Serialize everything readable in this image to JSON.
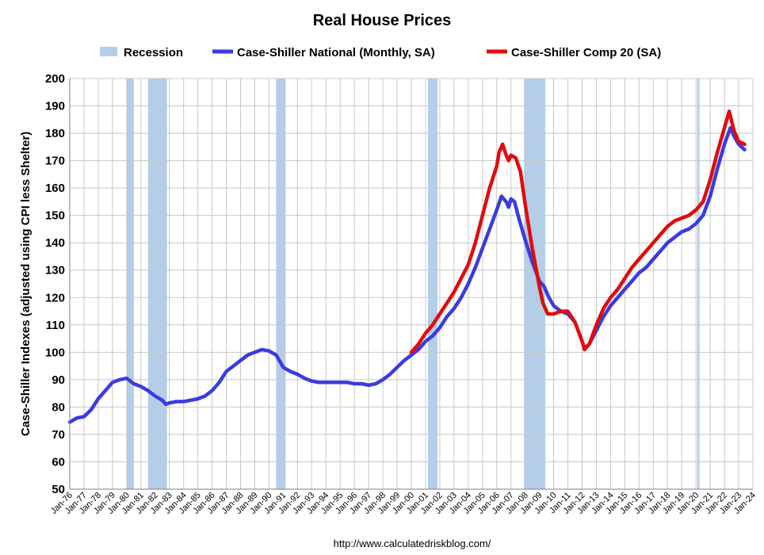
{
  "chart_data": {
    "type": "line",
    "title": "Real House Prices",
    "ylabel": "Case-Shiller Indexes (adjusted using CPI less Shelter)",
    "xlabel": "",
    "source": "http://www.calculatedriskblog.com/",
    "ylim": [
      50,
      200
    ],
    "yticks": [
      50,
      60,
      70,
      80,
      90,
      100,
      110,
      120,
      130,
      140,
      150,
      160,
      170,
      180,
      190,
      200
    ],
    "xlim": [
      "1976-01",
      "2024-01"
    ],
    "xticks": [
      "Jan-76",
      "Jan-77",
      "Jan-78",
      "Jan-79",
      "Jan-80",
      "Jan-81",
      "Jan-82",
      "Jan-83",
      "Jan-84",
      "Jan-85",
      "Jan-86",
      "Jan-87",
      "Jan-88",
      "Jan-89",
      "Jan-90",
      "Jan-91",
      "Jan-92",
      "Jan-93",
      "Jan-94",
      "Jan-95",
      "Jan-96",
      "Jan-97",
      "Jan-98",
      "Jan-99",
      "Jan-00",
      "Jan-01",
      "Jan-02",
      "Jan-03",
      "Jan-04",
      "Jan-05",
      "Jan-06",
      "Jan-07",
      "Jan-08",
      "Jan-09",
      "Jan-10",
      "Jan-11",
      "Jan-12",
      "Jan-13",
      "Jan-14",
      "Jan-15",
      "Jan-16",
      "Jan-17",
      "Jan-18",
      "Jan-19",
      "Jan-20",
      "Jan-21",
      "Jan-22",
      "Jan-23",
      "Jan-24"
    ],
    "grid": true,
    "legend_position": "top",
    "recession_label": "Recession",
    "recession_color": "#b4cde9",
    "recessions": [
      {
        "start": "1980-01",
        "end": "1980-07"
      },
      {
        "start": "1981-07",
        "end": "1982-11"
      },
      {
        "start": "1990-07",
        "end": "1991-03"
      },
      {
        "start": "2001-03",
        "end": "2001-11"
      },
      {
        "start": "2007-12",
        "end": "2009-06"
      },
      {
        "start": "2020-02",
        "end": "2020-04"
      }
    ],
    "series": [
      {
        "name": "Case-Shiller National (Monthly, SA)",
        "color": "#3b3be0",
        "points": [
          [
            "1976-01",
            74.5
          ],
          [
            "1976-07",
            76
          ],
          [
            "1977-01",
            76.5
          ],
          [
            "1977-07",
            79
          ],
          [
            "1978-01",
            83
          ],
          [
            "1978-07",
            86
          ],
          [
            "1979-01",
            89
          ],
          [
            "1979-07",
            90
          ],
          [
            "1980-01",
            90.5
          ],
          [
            "1980-07",
            88.5
          ],
          [
            "1981-01",
            87.5
          ],
          [
            "1981-07",
            86
          ],
          [
            "1982-01",
            84
          ],
          [
            "1982-07",
            82.5
          ],
          [
            "1982-10",
            81
          ],
          [
            "1983-01",
            81.5
          ],
          [
            "1983-07",
            82
          ],
          [
            "1984-01",
            82
          ],
          [
            "1984-07",
            82.5
          ],
          [
            "1985-01",
            83
          ],
          [
            "1985-07",
            84
          ],
          [
            "1986-01",
            86
          ],
          [
            "1986-07",
            89
          ],
          [
            "1987-01",
            93
          ],
          [
            "1987-07",
            95
          ],
          [
            "1988-01",
            97
          ],
          [
            "1988-07",
            99
          ],
          [
            "1989-01",
            100
          ],
          [
            "1989-07",
            101
          ],
          [
            "1990-01",
            100.5
          ],
          [
            "1990-07",
            99
          ],
          [
            "1991-01",
            94.5
          ],
          [
            "1991-07",
            93
          ],
          [
            "1992-01",
            92
          ],
          [
            "1992-07",
            90.5
          ],
          [
            "1993-01",
            89.5
          ],
          [
            "1993-07",
            89
          ],
          [
            "1994-01",
            89
          ],
          [
            "1994-07",
            89
          ],
          [
            "1995-01",
            89
          ],
          [
            "1995-07",
            89
          ],
          [
            "1996-01",
            88.5
          ],
          [
            "1996-07",
            88.5
          ],
          [
            "1997-01",
            88
          ],
          [
            "1997-07",
            88.5
          ],
          [
            "1998-01",
            90
          ],
          [
            "1998-07",
            92
          ],
          [
            "1999-01",
            94.5
          ],
          [
            "1999-07",
            97
          ],
          [
            "2000-01",
            99
          ],
          [
            "2000-07",
            101
          ],
          [
            "2001-01",
            104
          ],
          [
            "2001-07",
            106
          ],
          [
            "2002-01",
            109
          ],
          [
            "2002-07",
            113
          ],
          [
            "2003-01",
            116
          ],
          [
            "2003-07",
            120
          ],
          [
            "2004-01",
            125
          ],
          [
            "2004-07",
            131
          ],
          [
            "2005-01",
            138
          ],
          [
            "2005-07",
            145
          ],
          [
            "2006-01",
            152
          ],
          [
            "2006-05",
            157
          ],
          [
            "2006-09",
            155
          ],
          [
            "2006-11",
            153
          ],
          [
            "2007-01",
            156
          ],
          [
            "2007-04",
            155
          ],
          [
            "2007-07",
            150
          ],
          [
            "2008-01",
            141
          ],
          [
            "2008-07",
            133
          ],
          [
            "2009-01",
            126
          ],
          [
            "2009-05",
            124
          ],
          [
            "2009-09",
            120
          ],
          [
            "2010-01",
            117
          ],
          [
            "2010-07",
            115
          ],
          [
            "2011-01",
            114
          ],
          [
            "2011-07",
            111
          ],
          [
            "2012-01",
            104
          ],
          [
            "2012-03",
            101.5
          ],
          [
            "2012-07",
            103
          ],
          [
            "2013-01",
            108
          ],
          [
            "2013-07",
            113
          ],
          [
            "2014-01",
            117
          ],
          [
            "2014-07",
            120
          ],
          [
            "2015-01",
            123
          ],
          [
            "2015-07",
            126
          ],
          [
            "2016-01",
            129
          ],
          [
            "2016-07",
            131
          ],
          [
            "2017-01",
            134
          ],
          [
            "2017-07",
            137
          ],
          [
            "2018-01",
            140
          ],
          [
            "2018-07",
            142
          ],
          [
            "2019-01",
            144
          ],
          [
            "2019-07",
            145
          ],
          [
            "2020-01",
            147
          ],
          [
            "2020-07",
            150
          ],
          [
            "2021-01",
            157
          ],
          [
            "2021-07",
            167
          ],
          [
            "2022-01",
            176
          ],
          [
            "2022-06",
            182
          ],
          [
            "2022-09",
            179
          ],
          [
            "2023-01",
            176
          ],
          [
            "2023-06",
            174
          ]
        ]
      },
      {
        "name": "Case-Shiller Comp 20  (SA)",
        "color": "#e00c0c",
        "points": [
          [
            "2000-01",
            100
          ],
          [
            "2000-07",
            103
          ],
          [
            "2001-01",
            107
          ],
          [
            "2001-07",
            110
          ],
          [
            "2002-01",
            114
          ],
          [
            "2002-07",
            118
          ],
          [
            "2003-01",
            122
          ],
          [
            "2003-07",
            127
          ],
          [
            "2004-01",
            132
          ],
          [
            "2004-07",
            140
          ],
          [
            "2005-01",
            150
          ],
          [
            "2005-07",
            160
          ],
          [
            "2006-01",
            168
          ],
          [
            "2006-03",
            173
          ],
          [
            "2006-06",
            176
          ],
          [
            "2006-09",
            172
          ],
          [
            "2006-11",
            170
          ],
          [
            "2007-01",
            172
          ],
          [
            "2007-05",
            171
          ],
          [
            "2007-09",
            166
          ],
          [
            "2008-01",
            154
          ],
          [
            "2008-07",
            138
          ],
          [
            "2009-01",
            124
          ],
          [
            "2009-04",
            118
          ],
          [
            "2009-08",
            114
          ],
          [
            "2010-01",
            114
          ],
          [
            "2010-07",
            115
          ],
          [
            "2011-01",
            115
          ],
          [
            "2011-07",
            111
          ],
          [
            "2012-01",
            104
          ],
          [
            "2012-03",
            101
          ],
          [
            "2012-07",
            103
          ],
          [
            "2013-01",
            110
          ],
          [
            "2013-07",
            116
          ],
          [
            "2014-01",
            120
          ],
          [
            "2014-07",
            123
          ],
          [
            "2015-01",
            127
          ],
          [
            "2015-07",
            131
          ],
          [
            "2016-01",
            134
          ],
          [
            "2016-07",
            137
          ],
          [
            "2017-01",
            140
          ],
          [
            "2017-07",
            143
          ],
          [
            "2018-01",
            146
          ],
          [
            "2018-07",
            148
          ],
          [
            "2019-01",
            149
          ],
          [
            "2019-07",
            150
          ],
          [
            "2020-01",
            152
          ],
          [
            "2020-07",
            155
          ],
          [
            "2021-01",
            163
          ],
          [
            "2021-07",
            173
          ],
          [
            "2022-01",
            182
          ],
          [
            "2022-05",
            188
          ],
          [
            "2022-09",
            181
          ],
          [
            "2023-01",
            177
          ],
          [
            "2023-06",
            176
          ]
        ]
      }
    ]
  }
}
